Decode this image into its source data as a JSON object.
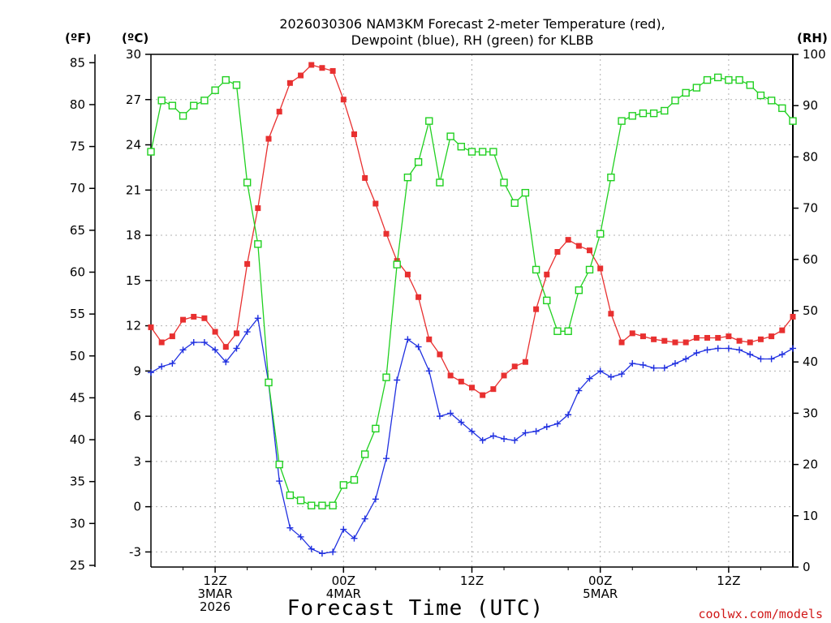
{
  "chart_data": {
    "type": "line",
    "title_line1": "2026030306 NAM3KM Forecast 2-meter Temperature (red),",
    "title_line2": "Dewpoint (blue), RH (green) for KLBB",
    "left_unit_f": "(ºF)",
    "left_unit_c": "(ºC)",
    "right_unit": "(RH)",
    "xlabel": "Forecast Time (UTC)",
    "credit": "coolwx.com/models",
    "x_range": [
      0,
      60
    ],
    "c_range": [
      -4,
      30
    ],
    "rh_range": [
      0,
      100
    ],
    "f_ticks": [
      "25",
      "30",
      "35",
      "40",
      "45",
      "50",
      "55",
      "60",
      "65",
      "70",
      "75",
      "80",
      "85"
    ],
    "f_tick_values": [
      25,
      30,
      35,
      40,
      45,
      50,
      55,
      60,
      65,
      70,
      75,
      80,
      85
    ],
    "c_ticks": [
      "-3",
      "0",
      "3",
      "6",
      "9",
      "12",
      "15",
      "18",
      "21",
      "24",
      "27",
      "30"
    ],
    "c_tick_values": [
      -3,
      0,
      3,
      6,
      9,
      12,
      15,
      18,
      21,
      24,
      27,
      30
    ],
    "rh_ticks": [
      "0",
      "10",
      "20",
      "30",
      "40",
      "50",
      "60",
      "70",
      "80",
      "90",
      "100"
    ],
    "rh_tick_values": [
      0,
      10,
      20,
      30,
      40,
      50,
      60,
      70,
      80,
      90,
      100
    ],
    "x_ticks": [
      {
        "hour": 6,
        "line1": "12Z",
        "line2": "3MAR",
        "line3": "2026"
      },
      {
        "hour": 18,
        "line1": "00Z",
        "line2": "4MAR",
        "line3": ""
      },
      {
        "hour": 30,
        "line1": "12Z",
        "line2": "",
        "line3": ""
      },
      {
        "hour": 42,
        "line1": "00Z",
        "line2": "5MAR",
        "line3": ""
      },
      {
        "hour": 54,
        "line1": "12Z",
        "line2": "",
        "line3": ""
      }
    ],
    "series": [
      {
        "name": "Temperature",
        "units": "C",
        "color": "#e83030",
        "marker": "filled-square",
        "x": [
          0,
          1,
          2,
          3,
          4,
          5,
          6,
          7,
          8,
          9,
          10,
          11,
          12,
          13,
          14,
          15,
          16,
          17,
          18,
          19,
          20,
          21,
          22,
          23,
          24,
          25,
          26,
          27,
          28,
          29,
          30,
          31,
          32,
          33,
          34,
          35,
          36,
          37,
          38,
          39,
          40,
          41,
          42,
          43,
          44,
          45,
          46,
          47,
          48,
          49,
          50,
          51,
          52,
          53,
          54,
          55,
          56,
          57,
          58,
          59,
          60
        ],
        "values": [
          11.9,
          10.9,
          11.3,
          12.4,
          12.6,
          12.5,
          11.6,
          10.6,
          11.5,
          16.1,
          19.8,
          24.4,
          26.2,
          28.1,
          28.6,
          29.3,
          29.1,
          28.9,
          27.0,
          24.7,
          21.8,
          20.1,
          18.1,
          16.3,
          15.4,
          13.9,
          11.1,
          10.1,
          8.7,
          8.3,
          7.9,
          7.4,
          7.8,
          8.7,
          9.3,
          9.6,
          13.1,
          15.4,
          16.9,
          17.7,
          17.3,
          17.0,
          15.8,
          12.8,
          10.9,
          11.5,
          11.3,
          11.1,
          11.0,
          10.9,
          10.9,
          11.2,
          11.2,
          11.2,
          11.3,
          11.0,
          10.9,
          11.1,
          11.3,
          11.7,
          12.6
        ]
      },
      {
        "name": "Dewpoint",
        "units": "C",
        "color": "#2030e0",
        "marker": "plus",
        "x": [
          0,
          1,
          2,
          3,
          4,
          5,
          6,
          7,
          8,
          9,
          10,
          11,
          12,
          13,
          14,
          15,
          16,
          17,
          18,
          19,
          20,
          21,
          22,
          23,
          24,
          25,
          26,
          27,
          28,
          29,
          30,
          31,
          32,
          33,
          34,
          35,
          36,
          37,
          38,
          39,
          40,
          41,
          42,
          43,
          44,
          45,
          46,
          47,
          48,
          49,
          50,
          51,
          52,
          53,
          54,
          55,
          56,
          57,
          58,
          59,
          60
        ],
        "values": [
          8.9,
          9.3,
          9.5,
          10.4,
          10.9,
          10.9,
          10.4,
          9.6,
          10.5,
          11.6,
          12.5,
          8.2,
          1.7,
          -1.4,
          -2.0,
          -2.8,
          -3.1,
          -3.0,
          -1.5,
          -2.1,
          -0.8,
          0.5,
          3.2,
          8.4,
          11.1,
          10.6,
          9.0,
          6.0,
          6.2,
          5.6,
          5.0,
          4.4,
          4.7,
          4.5,
          4.4,
          4.9,
          5.0,
          5.3,
          5.5,
          6.1,
          7.7,
          8.5,
          9.0,
          8.6,
          8.8,
          9.5,
          9.4,
          9.2,
          9.2,
          9.5,
          9.8,
          10.2,
          10.4,
          10.5,
          10.5,
          10.4,
          10.1,
          9.8,
          9.8,
          10.1,
          10.5
        ]
      },
      {
        "name": "RH",
        "units": "%",
        "color": "#20d020",
        "marker": "open-square",
        "x": [
          0,
          1,
          2,
          3,
          4,
          5,
          6,
          7,
          8,
          9,
          10,
          11,
          12,
          13,
          14,
          15,
          16,
          17,
          18,
          19,
          20,
          21,
          22,
          23,
          24,
          25,
          26,
          27,
          28,
          29,
          30,
          31,
          32,
          33,
          34,
          35,
          36,
          37,
          38,
          39,
          40,
          41,
          42,
          43,
          44,
          45,
          46,
          47,
          48,
          49,
          50,
          51,
          52,
          53,
          54,
          55,
          56,
          57,
          58,
          59,
          60
        ],
        "values": [
          81,
          91,
          90,
          88,
          90,
          91,
          93,
          95,
          94,
          75,
          63,
          36,
          20,
          14,
          13,
          12,
          12,
          12,
          16,
          17,
          22,
          27,
          37,
          59,
          76,
          79,
          87,
          75,
          84,
          82,
          81,
          81,
          81,
          75,
          71,
          73,
          58,
          52,
          46,
          46,
          54,
          58,
          65,
          76,
          87,
          88,
          88.5,
          88.5,
          89,
          91,
          92.5,
          93.5,
          95,
          95.5,
          95,
          95,
          94,
          92,
          91,
          89.5,
          87
        ]
      }
    ]
  }
}
